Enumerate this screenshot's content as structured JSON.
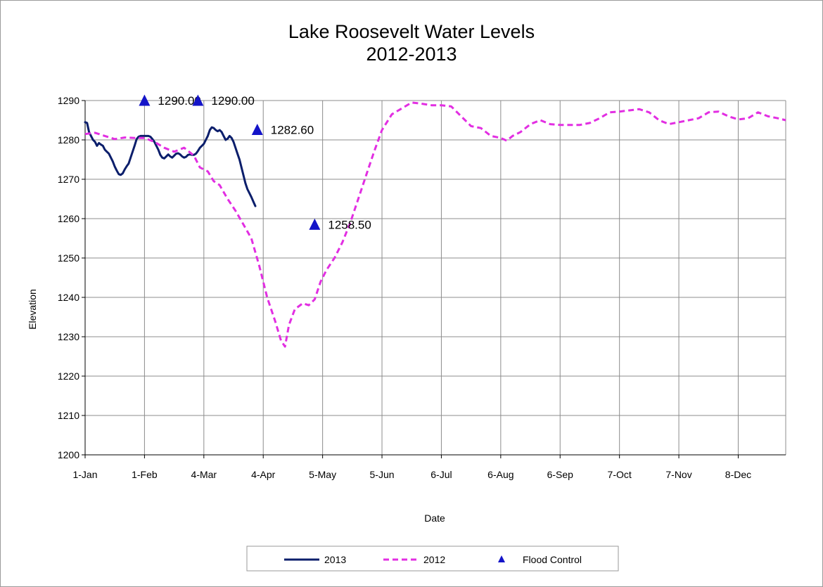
{
  "chart_data": {
    "type": "line",
    "title": "Lake Roosevelt Water Levels",
    "subtitle": "2012-2013",
    "xlabel": "Date",
    "ylabel": "Elevation",
    "ylim": [
      1200,
      1290
    ],
    "yticks": [
      1200,
      1210,
      1220,
      1230,
      1240,
      1250,
      1260,
      1270,
      1280,
      1290
    ],
    "xlim_days": [
      0,
      354
    ],
    "xticks": [
      {
        "day": 0,
        "label": "1-Jan"
      },
      {
        "day": 30,
        "label": "1-Feb"
      },
      {
        "day": 60,
        "label": "4-Mar"
      },
      {
        "day": 90,
        "label": "4-Apr"
      },
      {
        "day": 120,
        "label": "5-May"
      },
      {
        "day": 150,
        "label": "5-Jun"
      },
      {
        "day": 180,
        "label": "6-Jul"
      },
      {
        "day": 210,
        "label": "6-Aug"
      },
      {
        "day": 240,
        "label": "6-Sep"
      },
      {
        "day": 270,
        "label": "7-Oct"
      },
      {
        "day": 300,
        "label": "7-Nov"
      },
      {
        "day": 330,
        "label": "8-Dec"
      }
    ],
    "grid": true,
    "legend_position": "bottom",
    "series": [
      {
        "name": "2013",
        "color": "#0b1e6b",
        "style": "solid",
        "points": [
          [
            0,
            1284.5
          ],
          [
            1,
            1284.3
          ],
          [
            2,
            1282
          ],
          [
            3,
            1281
          ],
          [
            4,
            1280
          ],
          [
            5,
            1279.5
          ],
          [
            6,
            1278.5
          ],
          [
            7,
            1279.2
          ],
          [
            8,
            1278.8
          ],
          [
            9,
            1278.5
          ],
          [
            10,
            1277.5
          ],
          [
            11,
            1277
          ],
          [
            12,
            1276.5
          ],
          [
            13,
            1275.5
          ],
          [
            14,
            1274.5
          ],
          [
            15,
            1273.2
          ],
          [
            16,
            1272.2
          ],
          [
            17,
            1271.3
          ],
          [
            18,
            1271.1
          ],
          [
            19,
            1271.5
          ],
          [
            20,
            1272.5
          ],
          [
            21,
            1273.3
          ],
          [
            22,
            1274
          ],
          [
            23,
            1275.5
          ],
          [
            24,
            1277
          ],
          [
            25,
            1278.5
          ],
          [
            26,
            1280.2
          ],
          [
            27,
            1280.8
          ],
          [
            28,
            1281
          ],
          [
            29,
            1281
          ],
          [
            30,
            1281
          ],
          [
            31,
            1281
          ],
          [
            32,
            1281
          ],
          [
            33,
            1280.8
          ],
          [
            34,
            1280.2
          ],
          [
            35,
            1279.5
          ],
          [
            36,
            1278.5
          ],
          [
            37,
            1277.5
          ],
          [
            38,
            1276.2
          ],
          [
            39,
            1275.5
          ],
          [
            40,
            1275.3
          ],
          [
            41,
            1275.8
          ],
          [
            42,
            1276.3
          ],
          [
            43,
            1275.8
          ],
          [
            44,
            1275.5
          ],
          [
            45,
            1276
          ],
          [
            46,
            1276.5
          ],
          [
            47,
            1276.6
          ],
          [
            48,
            1276.3
          ],
          [
            49,
            1275.8
          ],
          [
            50,
            1275.5
          ],
          [
            51,
            1275.7
          ],
          [
            52,
            1276.2
          ],
          [
            53,
            1276.3
          ],
          [
            54,
            1276.2
          ],
          [
            55,
            1276.2
          ],
          [
            56,
            1276.5
          ],
          [
            57,
            1277.2
          ],
          [
            58,
            1278
          ],
          [
            59,
            1278.5
          ],
          [
            60,
            1279
          ],
          [
            61,
            1280
          ],
          [
            62,
            1281
          ],
          [
            63,
            1282.5
          ],
          [
            64,
            1283.2
          ],
          [
            65,
            1283
          ],
          [
            66,
            1282.5
          ],
          [
            67,
            1282.2
          ],
          [
            68,
            1282.5
          ],
          [
            69,
            1282
          ],
          [
            70,
            1281
          ],
          [
            71,
            1280
          ],
          [
            72,
            1280.3
          ],
          [
            73,
            1281
          ],
          [
            74,
            1280.5
          ],
          [
            75,
            1279.5
          ],
          [
            76,
            1278
          ],
          [
            77,
            1276.5
          ],
          [
            78,
            1275
          ],
          [
            79,
            1273
          ],
          [
            80,
            1271
          ],
          [
            81,
            1269
          ],
          [
            82,
            1267.5
          ],
          [
            83,
            1266.5
          ],
          [
            84,
            1265.5
          ],
          [
            85,
            1264.3
          ],
          [
            86,
            1263.2
          ]
        ]
      },
      {
        "name": "2012",
        "color": "#e22ee2",
        "style": "dashed",
        "points": [
          [
            0,
            1281.5
          ],
          [
            5,
            1281.8
          ],
          [
            10,
            1281
          ],
          [
            15,
            1280.2
          ],
          [
            20,
            1280.6
          ],
          [
            25,
            1280.5
          ],
          [
            30,
            1280.5
          ],
          [
            35,
            1279.5
          ],
          [
            40,
            1278
          ],
          [
            45,
            1277
          ],
          [
            50,
            1278
          ],
          [
            55,
            1276
          ],
          [
            58,
            1273
          ],
          [
            62,
            1272
          ],
          [
            65,
            1269.5
          ],
          [
            68,
            1268.5
          ],
          [
            72,
            1265
          ],
          [
            76,
            1262
          ],
          [
            80,
            1258.5
          ],
          [
            84,
            1255
          ],
          [
            88,
            1248
          ],
          [
            92,
            1240
          ],
          [
            96,
            1234
          ],
          [
            99,
            1229
          ],
          [
            101,
            1227.5
          ],
          [
            103,
            1233
          ],
          [
            106,
            1237
          ],
          [
            110,
            1238.5
          ],
          [
            113,
            1238
          ],
          [
            116,
            1239.5
          ],
          [
            119,
            1244
          ],
          [
            122,
            1247
          ],
          [
            126,
            1250
          ],
          [
            130,
            1254
          ],
          [
            134,
            1259
          ],
          [
            138,
            1265
          ],
          [
            142,
            1271
          ],
          [
            146,
            1277
          ],
          [
            150,
            1282.5
          ],
          [
            155,
            1286.5
          ],
          [
            160,
            1288
          ],
          [
            165,
            1289.5
          ],
          [
            170,
            1289.2
          ],
          [
            175,
            1288.8
          ],
          [
            180,
            1288.8
          ],
          [
            185,
            1288.5
          ],
          [
            190,
            1286
          ],
          [
            195,
            1283.5
          ],
          [
            200,
            1283
          ],
          [
            205,
            1281
          ],
          [
            210,
            1280.5
          ],
          [
            213,
            1279.8
          ],
          [
            216,
            1281
          ],
          [
            220,
            1282
          ],
          [
            225,
            1284
          ],
          [
            230,
            1285
          ],
          [
            235,
            1284
          ],
          [
            240,
            1283.8
          ],
          [
            245,
            1283.8
          ],
          [
            250,
            1283.8
          ],
          [
            255,
            1284.3
          ],
          [
            260,
            1285.5
          ],
          [
            265,
            1287
          ],
          [
            270,
            1287.2
          ],
          [
            275,
            1287.5
          ],
          [
            280,
            1287.8
          ],
          [
            285,
            1287
          ],
          [
            290,
            1285
          ],
          [
            295,
            1284
          ],
          [
            300,
            1284.5
          ],
          [
            305,
            1285
          ],
          [
            310,
            1285.5
          ],
          [
            315,
            1287
          ],
          [
            320,
            1287.2
          ],
          [
            325,
            1286
          ],
          [
            330,
            1285.2
          ],
          [
            335,
            1285.5
          ],
          [
            340,
            1287
          ],
          [
            345,
            1286
          ],
          [
            350,
            1285.5
          ],
          [
            354,
            1285
          ]
        ]
      }
    ],
    "flood_control": {
      "name": "Flood Control",
      "color": "#1414c8",
      "points": [
        {
          "day": 30,
          "value": 1290.0,
          "label": "1290.00"
        },
        {
          "day": 57,
          "value": 1290.0,
          "label": "1290.00"
        },
        {
          "day": 87,
          "value": 1282.6,
          "label": "1282.60"
        },
        {
          "day": 116,
          "value": 1258.5,
          "label": "1258.50"
        }
      ]
    },
    "legend": [
      {
        "label": "2013",
        "kind": "solid-line",
        "color": "#0b1e6b"
      },
      {
        "label": "2012",
        "kind": "dashed-line",
        "color": "#e22ee2"
      },
      {
        "label": "Flood Control",
        "kind": "triangle",
        "color": "#1414c8"
      }
    ]
  }
}
